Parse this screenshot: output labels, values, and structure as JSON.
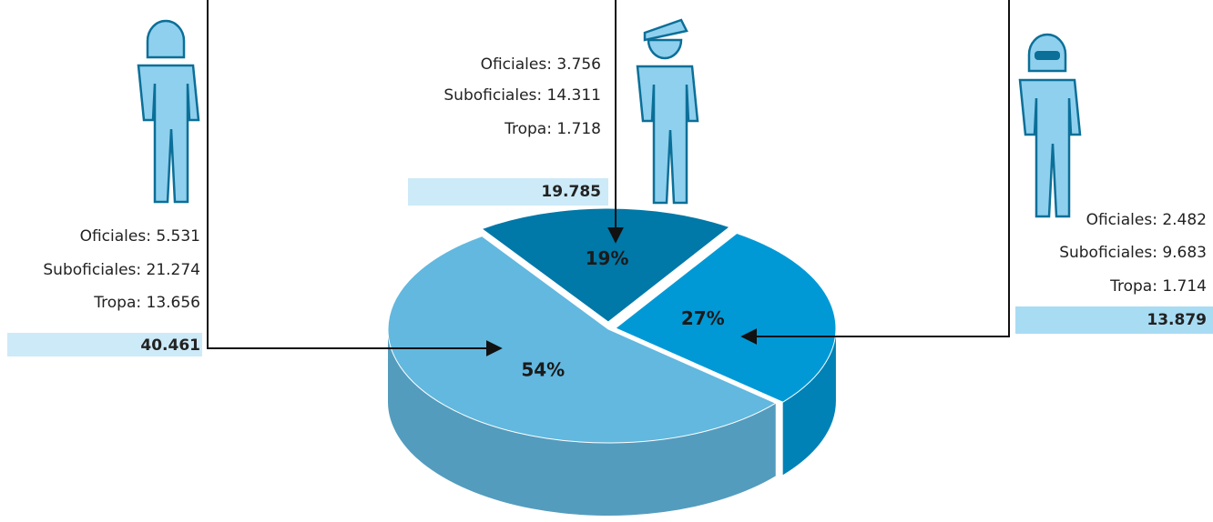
{
  "chart_data": {
    "type": "pie",
    "values": [
      54,
      27,
      19
    ],
    "value_labels": [
      "54%",
      "27%",
      "19%"
    ],
    "colors": [
      "#62b8df",
      "#0099d6",
      "#0078a8"
    ],
    "groups": [
      {
        "lines": [
          "Oficiales: 5.531",
          "Suboficiales: 21.274",
          "Tropa: 13.656"
        ],
        "total": "40.461"
      },
      {
        "lines": [
          "Oficiales: 3.756",
          "Suboficiales: 14.311",
          "Tropa: 1.718"
        ],
        "total": "19.785"
      },
      {
        "lines": [
          "Oficiales: 2.482",
          "Suboficiales: 9.683",
          "Tropa: 1.714"
        ],
        "total": "13.879"
      }
    ]
  }
}
